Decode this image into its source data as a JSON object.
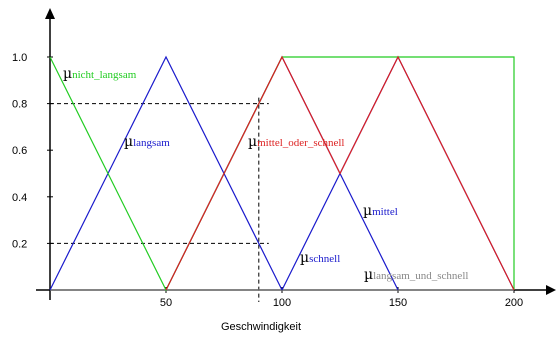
{
  "chart_data": {
    "type": "line",
    "xlabel": "Geschwindigkeit",
    "ylabel": "",
    "xlim": [
      0,
      200
    ],
    "ylim": [
      0,
      1
    ],
    "x_ticks": [
      "50",
      "100",
      "150",
      "200"
    ],
    "y_ticks": [
      "0.2",
      "0.4",
      "0.6",
      "0.8",
      "1.0"
    ],
    "grid": false,
    "series": [
      {
        "name": "nicht_langsam",
        "color": "#22cc22",
        "points": [
          [
            0,
            1
          ],
          [
            50,
            0
          ],
          [
            100,
            1
          ],
          [
            200,
            1
          ],
          [
            200,
            0
          ]
        ]
      },
      {
        "name": "langsam",
        "color": "#1a1acc",
        "points": [
          [
            0,
            0
          ],
          [
            50,
            1
          ],
          [
            100,
            0
          ]
        ]
      },
      {
        "name": "mittel",
        "color": "#1a1acc",
        "points": [
          [
            50,
            0
          ],
          [
            100,
            1
          ],
          [
            150,
            0
          ]
        ]
      },
      {
        "name": "schnell",
        "color": "#1a1acc",
        "points": [
          [
            100,
            0
          ],
          [
            150,
            1
          ],
          [
            200,
            0
          ]
        ]
      },
      {
        "name": "mittel_oder_schnell",
        "color": "#dd2222",
        "points": [
          [
            50,
            0
          ],
          [
            100,
            1
          ],
          [
            125,
            0.5
          ],
          [
            150,
            1
          ],
          [
            200,
            0
          ]
        ]
      },
      {
        "name": "langsam_und_schnell",
        "color": "#888888",
        "points": [
          [
            0,
            0
          ],
          [
            200,
            0
          ]
        ]
      }
    ],
    "markers": {
      "x": 90,
      "levels": [
        0.8,
        0.2
      ]
    }
  },
  "labels": {
    "mu": "µ",
    "nicht_langsam": "nicht_langsam",
    "langsam": "langsam",
    "mittel_oder_schnell": "mittel_oder_schnell",
    "mittel": "mittel",
    "schnell": "schnell",
    "langsam_und_schnell": "langsam_und_schnell"
  },
  "colors": {
    "green": "#22cc22",
    "blue": "#1a1acc",
    "red": "#dd2222",
    "gray": "#888888"
  }
}
